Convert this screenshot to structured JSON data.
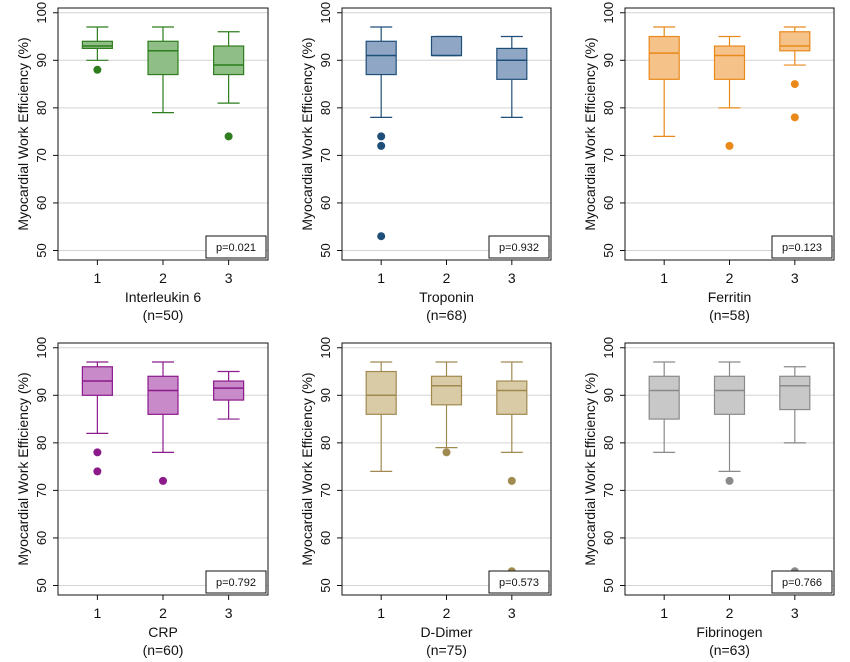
{
  "chart_data": [
    {
      "type": "box",
      "ylabel": "Myocardial Work Efficiency (%)",
      "xlabel": "Interleukin 6",
      "xlabel2": "(n=50)",
      "categories": [
        "1",
        "2",
        "3"
      ],
      "ylim": [
        48,
        101
      ],
      "yticks": [
        50,
        60,
        70,
        80,
        90,
        100
      ],
      "grid": true,
      "color": "#2e7d1e",
      "fill": "#8fbf86",
      "pvalue": "p=0.021",
      "boxes": [
        {
          "category": "1",
          "min": 90,
          "q1": 92.5,
          "median": 93,
          "q3": 94,
          "max": 97,
          "outliers": [
            88
          ]
        },
        {
          "category": "2",
          "min": 79,
          "q1": 87,
          "median": 92,
          "q3": 94,
          "max": 97,
          "outliers": []
        },
        {
          "category": "3",
          "min": 81,
          "q1": 87,
          "median": 89,
          "q3": 93,
          "max": 96,
          "outliers": [
            74
          ]
        }
      ]
    },
    {
      "type": "box",
      "ylabel": "Myocardial Work Efficiency (%)",
      "xlabel": "Troponin",
      "xlabel2": "(n=68)",
      "categories": [
        "1",
        "2",
        "3"
      ],
      "ylim": [
        48,
        101
      ],
      "yticks": [
        50,
        60,
        70,
        80,
        90,
        100
      ],
      "grid": true,
      "color": "#1f4e79",
      "fill": "#8fa7c4",
      "pvalue": "p=0.932",
      "boxes": [
        {
          "category": "1",
          "min": 78,
          "q1": 87,
          "median": 91,
          "q3": 94,
          "max": 97,
          "outliers": [
            74,
            72,
            53
          ]
        },
        {
          "category": "2",
          "min": 91,
          "q1": 91,
          "median": 91,
          "q3": 95,
          "max": 95,
          "outliers": []
        },
        {
          "category": "3",
          "min": 78,
          "q1": 86,
          "median": 90,
          "q3": 92.5,
          "max": 95,
          "outliers": []
        }
      ]
    },
    {
      "type": "box",
      "ylabel": "Myocardial Work Efficiency (%)",
      "xlabel": "Ferritin",
      "xlabel2": "(n=58)",
      "categories": [
        "1",
        "2",
        "3"
      ],
      "ylim": [
        48,
        101
      ],
      "yticks": [
        50,
        60,
        70,
        80,
        90,
        100
      ],
      "grid": true,
      "color": "#e8891a",
      "fill": "#f5c28a",
      "pvalue": "p=0.123",
      "boxes": [
        {
          "category": "1",
          "min": 74,
          "q1": 86,
          "median": 91.5,
          "q3": 95,
          "max": 97,
          "outliers": []
        },
        {
          "category": "2",
          "min": 80,
          "q1": 86,
          "median": 91,
          "q3": 93,
          "max": 95,
          "outliers": [
            72
          ]
        },
        {
          "category": "3",
          "min": 89,
          "q1": 92,
          "median": 93,
          "q3": 96,
          "max": 97,
          "outliers": [
            85,
            78
          ]
        }
      ]
    },
    {
      "type": "box",
      "ylabel": "Myocardial Work Efficiency (%)",
      "xlabel": "CRP",
      "xlabel2": "(n=60)",
      "categories": [
        "1",
        "2",
        "3"
      ],
      "ylim": [
        48,
        101
      ],
      "yticks": [
        50,
        60,
        70,
        80,
        90,
        100
      ],
      "grid": true,
      "color": "#8b1a8b",
      "fill": "#c88ac8",
      "pvalue": "p=0.792",
      "boxes": [
        {
          "category": "1",
          "min": 82,
          "q1": 90,
          "median": 93,
          "q3": 96,
          "max": 97,
          "outliers": [
            78,
            74
          ]
        },
        {
          "category": "2",
          "min": 78,
          "q1": 86,
          "median": 91,
          "q3": 94,
          "max": 97,
          "outliers": [
            72
          ]
        },
        {
          "category": "3",
          "min": 85,
          "q1": 89,
          "median": 91.5,
          "q3": 93,
          "max": 95,
          "outliers": []
        }
      ]
    },
    {
      "type": "box",
      "ylabel": "Myocardial Work Efficiency (%)",
      "xlabel": "D-Dimer",
      "xlabel2": "(n=75)",
      "categories": [
        "1",
        "2",
        "3"
      ],
      "ylim": [
        48,
        101
      ],
      "yticks": [
        50,
        60,
        70,
        80,
        90,
        100
      ],
      "grid": true,
      "color": "#a08a50",
      "fill": "#d9cba6",
      "pvalue": "p=0.573",
      "boxes": [
        {
          "category": "1",
          "min": 74,
          "q1": 86,
          "median": 90,
          "q3": 95,
          "max": 97,
          "outliers": []
        },
        {
          "category": "2",
          "min": 79,
          "q1": 88,
          "median": 92,
          "q3": 94,
          "max": 97,
          "outliers": [
            78
          ]
        },
        {
          "category": "3",
          "min": 78,
          "q1": 86,
          "median": 91,
          "q3": 93,
          "max": 97,
          "outliers": [
            72,
            53
          ]
        }
      ]
    },
    {
      "type": "box",
      "ylabel": "Myocardial Work Efficiency (%)",
      "xlabel": "Fibrinogen",
      "xlabel2": "(n=63)",
      "categories": [
        "1",
        "2",
        "3"
      ],
      "ylim": [
        48,
        101
      ],
      "yticks": [
        50,
        60,
        70,
        80,
        90,
        100
      ],
      "grid": true,
      "color": "#8a8a8a",
      "fill": "#c8c8c8",
      "pvalue": "p=0.766",
      "boxes": [
        {
          "category": "1",
          "min": 78,
          "q1": 85,
          "median": 91,
          "q3": 94,
          "max": 97,
          "outliers": []
        },
        {
          "category": "2",
          "min": 74,
          "q1": 86,
          "median": 91,
          "q3": 94,
          "max": 97,
          "outliers": [
            72
          ]
        },
        {
          "category": "3",
          "min": 80,
          "q1": 87,
          "median": 92,
          "q3": 94,
          "max": 96,
          "outliers": [
            53
          ]
        }
      ]
    }
  ]
}
